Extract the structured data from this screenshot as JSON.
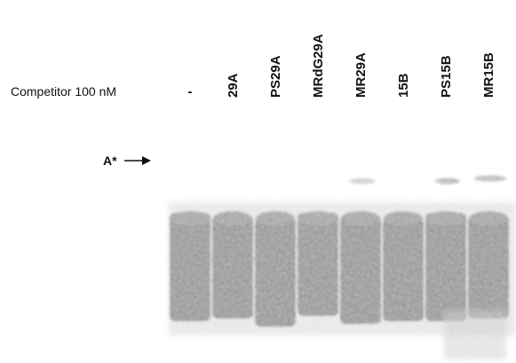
{
  "row_label": "Competitor 100 nM",
  "lanes": [
    "-",
    "29A",
    "PS29A",
    "MRdG29A",
    "MR29A",
    "15B",
    "PS15B",
    "MR15B"
  ],
  "band_label": "A*"
}
